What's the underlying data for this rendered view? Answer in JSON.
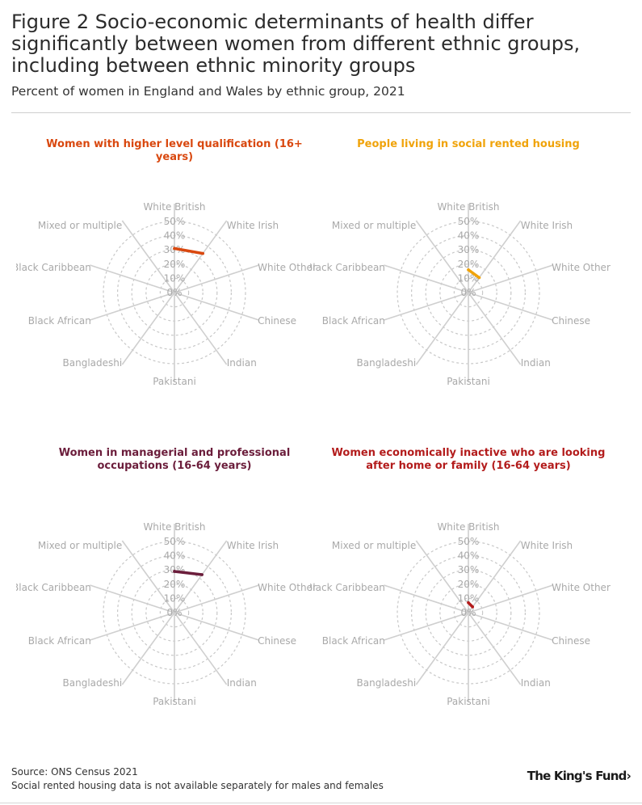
{
  "header": {
    "title": "Figure 2 Socio-economic determinants of health differ significantly between women from different ethnic groups, including between ethnic minority groups",
    "subtitle": "Percent of women in England and Wales by ethnic group, 2021"
  },
  "footer": {
    "source": "Source: ONS Census 2021",
    "note": "Social rented housing data is not available separately for males and females",
    "logo_text": "The King's Fund",
    "logo_arrow": "›"
  },
  "chart_data": [
    {
      "type": "radar",
      "title": "Women with higher level qualification (16+ years)",
      "color": "#d9480f",
      "axes": [
        "White British",
        "White Irish",
        "White Other",
        "Chinese",
        "Indian",
        "Pakistani",
        "Bangladeshi",
        "Black African",
        "Black Caribbean",
        "Mixed or multiple"
      ],
      "values": [
        31,
        34,
        0,
        0,
        0,
        0,
        0,
        0,
        0,
        0
      ],
      "rlim": [
        0,
        50
      ],
      "ticks": [
        "0%",
        "10%",
        "20%",
        "30%",
        "40%",
        "50%"
      ]
    },
    {
      "type": "radar",
      "title": "People living in social rented housing",
      "color": "#f0a30a",
      "axes": [
        "White British",
        "White Irish",
        "White Other",
        "Chinese",
        "Indian",
        "Pakistani",
        "Bangladeshi",
        "Black African",
        "Black Caribbean",
        "Mixed or multiple"
      ],
      "values": [
        16,
        13,
        0,
        0,
        0,
        0,
        0,
        0,
        0,
        0
      ],
      "rlim": [
        0,
        50
      ],
      "ticks": [
        "0%",
        "10%",
        "20%",
        "30%",
        "40%",
        "50%"
      ]
    },
    {
      "type": "radar",
      "title": "Women in managerial and professional occupations (16-64 years)",
      "color": "#6b1d3b",
      "axes": [
        "White British",
        "White Irish",
        "White Other",
        "Chinese",
        "Indian",
        "Pakistani",
        "Bangladeshi",
        "Black African",
        "Black Caribbean",
        "Mixed or multiple"
      ],
      "values": [
        29,
        33,
        0,
        0,
        0,
        0,
        0,
        0,
        0,
        0
      ],
      "rlim": [
        0,
        50
      ],
      "ticks": [
        "0%",
        "10%",
        "20%",
        "30%",
        "40%",
        "50%"
      ]
    },
    {
      "type": "radar",
      "title": "Women economically inactive who are looking after home or family (16-64 years)",
      "color": "#b31c1c",
      "axes": [
        "White British",
        "White Irish",
        "White Other",
        "Chinese",
        "Indian",
        "Pakistani",
        "Bangladeshi",
        "Black African",
        "Black Caribbean",
        "Mixed or multiple"
      ],
      "values": [
        7,
        5,
        0,
        0,
        0,
        0,
        0,
        0,
        0,
        0
      ],
      "rlim": [
        0,
        50
      ],
      "ticks": [
        "0%",
        "10%",
        "20%",
        "30%",
        "40%",
        "50%"
      ]
    }
  ]
}
